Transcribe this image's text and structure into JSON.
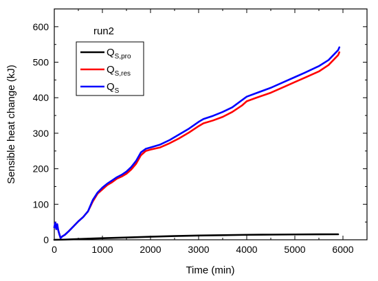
{
  "chart_data": {
    "type": "line",
    "annotation": "run2",
    "xlabel": "Time (min)",
    "ylabel": "Sensible heat change (kJ)",
    "xlim": [
      0,
      6500
    ],
    "ylim": [
      0,
      650
    ],
    "x_ticks": [
      "0",
      "1000",
      "2000",
      "3000",
      "4000",
      "5000",
      "6000"
    ],
    "y_ticks": [
      "0",
      "100",
      "200",
      "300",
      "400",
      "500",
      "600"
    ],
    "x_tick_values": [
      0,
      1000,
      2000,
      3000,
      4000,
      5000,
      6000
    ],
    "y_tick_values": [
      0,
      100,
      200,
      300,
      400,
      500,
      600
    ],
    "grid": false,
    "legend_position": "top-left",
    "series": [
      {
        "name": "Q",
        "name_sub": "S,pro",
        "color": "#000000",
        "points": [
          [
            0,
            0
          ],
          [
            200,
            0.5
          ],
          [
            500,
            2
          ],
          [
            1000,
            4.5
          ],
          [
            1500,
            6.5
          ],
          [
            2000,
            8.5
          ],
          [
            2500,
            10.5
          ],
          [
            3000,
            12
          ],
          [
            3500,
            13
          ],
          [
            4000,
            14
          ],
          [
            4500,
            14.5
          ],
          [
            5000,
            15
          ],
          [
            5500,
            15.3
          ],
          [
            5900,
            15.5
          ]
        ]
      },
      {
        "name": "Q",
        "name_sub": "S,res",
        "color": "#ff0000",
        "points": [
          [
            0,
            35
          ],
          [
            20,
            48
          ],
          [
            40,
            30
          ],
          [
            60,
            44
          ],
          [
            80,
            28
          ],
          [
            100,
            18
          ],
          [
            130,
            5
          ],
          [
            170,
            10
          ],
          [
            220,
            14
          ],
          [
            300,
            24
          ],
          [
            400,
            38
          ],
          [
            500,
            52
          ],
          [
            600,
            64
          ],
          [
            700,
            80
          ],
          [
            800,
            108
          ],
          [
            900,
            130
          ],
          [
            1000,
            142
          ],
          [
            1100,
            154
          ],
          [
            1200,
            162
          ],
          [
            1300,
            172
          ],
          [
            1400,
            178
          ],
          [
            1500,
            186
          ],
          [
            1600,
            198
          ],
          [
            1700,
            214
          ],
          [
            1800,
            238
          ],
          [
            1900,
            250
          ],
          [
            2000,
            254
          ],
          [
            2200,
            260
          ],
          [
            2400,
            272
          ],
          [
            2600,
            286
          ],
          [
            2800,
            302
          ],
          [
            3000,
            320
          ],
          [
            3100,
            328
          ],
          [
            3300,
            336
          ],
          [
            3500,
            346
          ],
          [
            3700,
            360
          ],
          [
            3900,
            378
          ],
          [
            4000,
            390
          ],
          [
            4200,
            400
          ],
          [
            4500,
            414
          ],
          [
            4800,
            432
          ],
          [
            5000,
            444
          ],
          [
            5200,
            456
          ],
          [
            5500,
            474
          ],
          [
            5700,
            492
          ],
          [
            5800,
            506
          ],
          [
            5900,
            520
          ],
          [
            5925,
            528
          ]
        ]
      },
      {
        "name": "Q",
        "name_sub": "S",
        "color": "#0000ff",
        "points": [
          [
            0,
            35
          ],
          [
            20,
            48
          ],
          [
            40,
            30
          ],
          [
            60,
            44
          ],
          [
            80,
            28
          ],
          [
            100,
            18
          ],
          [
            130,
            5
          ],
          [
            170,
            10
          ],
          [
            220,
            14
          ],
          [
            300,
            24
          ],
          [
            400,
            38
          ],
          [
            500,
            52
          ],
          [
            600,
            64
          ],
          [
            700,
            80
          ],
          [
            800,
            112
          ],
          [
            900,
            133
          ],
          [
            1000,
            147
          ],
          [
            1100,
            158
          ],
          [
            1200,
            167
          ],
          [
            1300,
            176
          ],
          [
            1400,
            183
          ],
          [
            1500,
            192
          ],
          [
            1600,
            205
          ],
          [
            1700,
            222
          ],
          [
            1800,
            246
          ],
          [
            1900,
            256
          ],
          [
            2000,
            260
          ],
          [
            2200,
            268
          ],
          [
            2400,
            281
          ],
          [
            2600,
            297
          ],
          [
            2800,
            313
          ],
          [
            3000,
            332
          ],
          [
            3100,
            340
          ],
          [
            3300,
            349
          ],
          [
            3500,
            360
          ],
          [
            3700,
            373
          ],
          [
            3900,
            393
          ],
          [
            4000,
            403
          ],
          [
            4200,
            413
          ],
          [
            4500,
            428
          ],
          [
            4800,
            446
          ],
          [
            5000,
            458
          ],
          [
            5200,
            470
          ],
          [
            5500,
            489
          ],
          [
            5700,
            506
          ],
          [
            5800,
            520
          ],
          [
            5900,
            534
          ],
          [
            5925,
            542
          ]
        ]
      }
    ]
  }
}
